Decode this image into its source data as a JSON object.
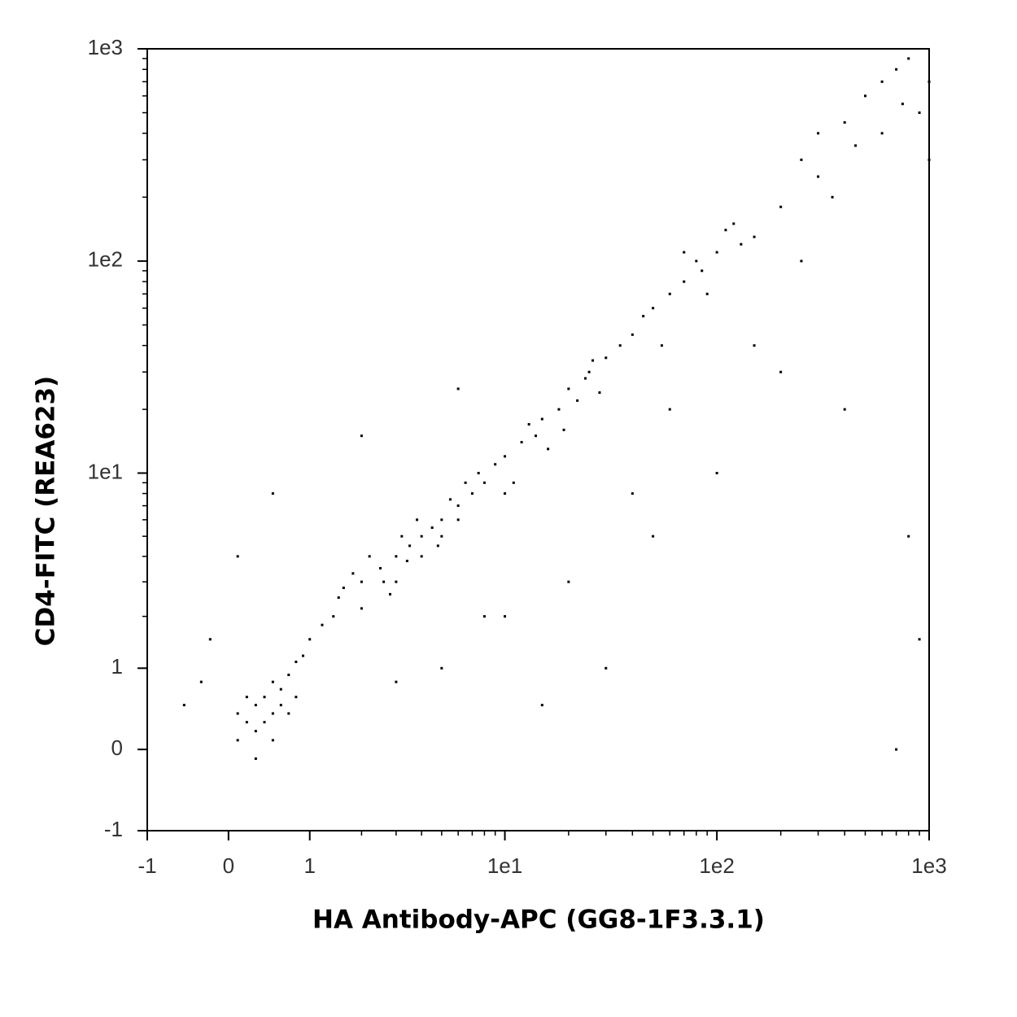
{
  "chart_data": {
    "type": "scatter",
    "xlabel": "HA Antibody-APC (GG8-1F3.3.1)",
    "ylabel": "CD4-FITC (REA623)",
    "xscale": "asinh",
    "yscale": "asinh",
    "xlim": [
      -1,
      1000
    ],
    "ylim": [
      -1,
      1000
    ],
    "xticks": [
      -1,
      0,
      1,
      {
        "value": 10,
        "label": "1e1"
      },
      {
        "value": 100,
        "label": "1e2"
      },
      {
        "value": 1000,
        "label": "1e3"
      }
    ],
    "yticks": [
      -1,
      0,
      1,
      {
        "value": 10,
        "label": "1e1"
      },
      {
        "value": 100,
        "label": "1e2"
      },
      {
        "value": 1000,
        "label": "1e3"
      }
    ],
    "minor_ticks": [
      2,
      3,
      4,
      5,
      6,
      7,
      8,
      9,
      20,
      30,
      40,
      50,
      60,
      70,
      80,
      90,
      200,
      300,
      400,
      500,
      600,
      700,
      800,
      900
    ],
    "color": "#000000",
    "x": [
      0.2,
      0.3,
      0.4,
      0.5,
      0.6,
      0.1,
      0.3,
      0.7,
      0.5,
      0.8,
      0.4,
      0.2,
      0.6,
      0.9,
      1,
      0.3,
      0.1,
      0.7,
      0.5,
      0.8,
      1.5,
      2,
      2.5,
      3,
      3.5,
      4,
      5,
      6,
      2,
      3,
      1.8,
      4.5,
      5.5,
      7,
      8,
      2.2,
      3.2,
      4,
      6,
      2.8,
      1.4,
      1.2,
      3.8,
      5,
      6.5,
      2.6,
      3.4,
      4.8,
      7.5,
      1.6,
      9,
      10,
      12,
      14,
      15,
      18,
      20,
      22,
      25,
      30,
      11,
      13,
      16,
      24,
      28,
      35,
      40,
      10,
      19,
      26,
      50,
      60,
      70,
      80,
      100,
      120,
      150,
      90,
      45,
      110,
      130,
      200,
      70,
      55,
      85,
      250,
      300,
      400,
      500,
      600,
      700,
      800,
      350,
      900,
      1000,
      450,
      600,
      300,
      1000,
      750,
      5,
      8,
      20,
      50,
      100,
      30,
      15,
      3,
      60,
      200,
      400,
      800,
      900,
      700,
      10,
      40,
      150,
      250,
      -0.3,
      -0.5,
      -0.2,
      0.1,
      0.5,
      2,
      6
    ],
    "values": [
      0.3,
      0.5,
      0.6,
      0.4,
      0.7,
      0.1,
      0.2,
      0.9,
      0.8,
      0.6,
      0.3,
      0.6,
      0.5,
      1.2,
      1.5,
      -0.1,
      0.4,
      0.4,
      0.1,
      1.1,
      2.5,
      3,
      3.5,
      4,
      4.5,
      5,
      6,
      7,
      2.2,
      3,
      3.3,
      5.5,
      7.5,
      8,
      9,
      4,
      5,
      4,
      6,
      2.6,
      2,
      1.8,
      6,
      5,
      9,
      3,
      3.8,
      4.5,
      10,
      2.8,
      11,
      12,
      14,
      15,
      18,
      20,
      25,
      22,
      30,
      35,
      9,
      17,
      13,
      28,
      24,
      40,
      45,
      8,
      16,
      34,
      60,
      70,
      80,
      100,
      110,
      150,
      130,
      70,
      55,
      140,
      120,
      180,
      110,
      40,
      90,
      300,
      250,
      450,
      600,
      700,
      800,
      900,
      200,
      500,
      700,
      350,
      400,
      400,
      300,
      550,
      1,
      2,
      3,
      5,
      10,
      1,
      0.5,
      0.8,
      20,
      30,
      20,
      5,
      1.5,
      0,
      2,
      8,
      40,
      100,
      0.8,
      0.5,
      1.5,
      4,
      8,
      15,
      25
    ]
  }
}
